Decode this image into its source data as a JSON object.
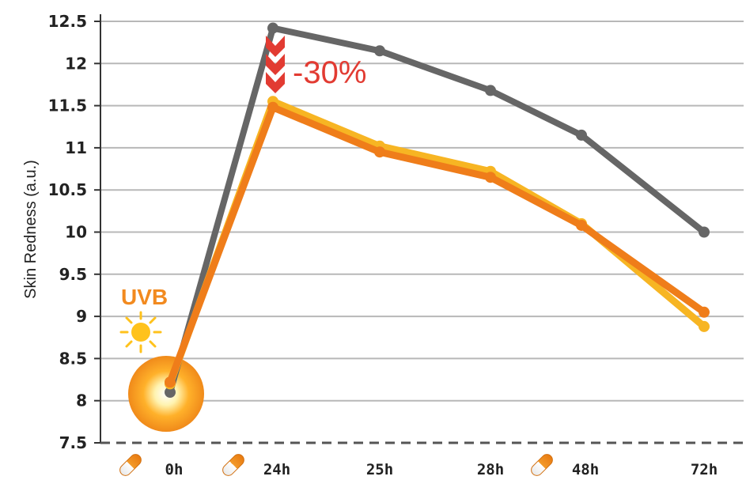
{
  "chart_data": {
    "type": "line",
    "title": "",
    "xlabel": "",
    "ylabel": "Skin Redness (a.u.)",
    "ylim": [
      7.5,
      12.5
    ],
    "yticks": [
      "7.5",
      "8",
      "8.5",
      "9",
      "9.5",
      "10",
      "10.5",
      "11",
      "11.5",
      "12",
      "12.5"
    ],
    "categories": [
      "0h",
      "24h",
      "25h",
      "28h",
      "48h",
      "72h"
    ],
    "pill_markers_at": [
      "0h",
      "24h",
      "48h"
    ],
    "grid": "horizontal",
    "series": [
      {
        "values": [
          8.1,
          12.42,
          12.15,
          11.68,
          11.15,
          10.0
        ],
        "color": "#666666"
      },
      {
        "values": [
          8.2,
          11.55,
          11.02,
          10.72,
          10.1,
          8.88
        ],
        "color": "#f7b523"
      },
      {
        "values": [
          8.22,
          11.48,
          10.95,
          10.65,
          10.08,
          9.05
        ],
        "color": "#ef7d1a"
      }
    ],
    "annotations": {
      "reduction_label": "-30%",
      "reduction_color": "#e23b32",
      "uv_label": "UVB",
      "uv_color": "#f28a1f"
    }
  }
}
